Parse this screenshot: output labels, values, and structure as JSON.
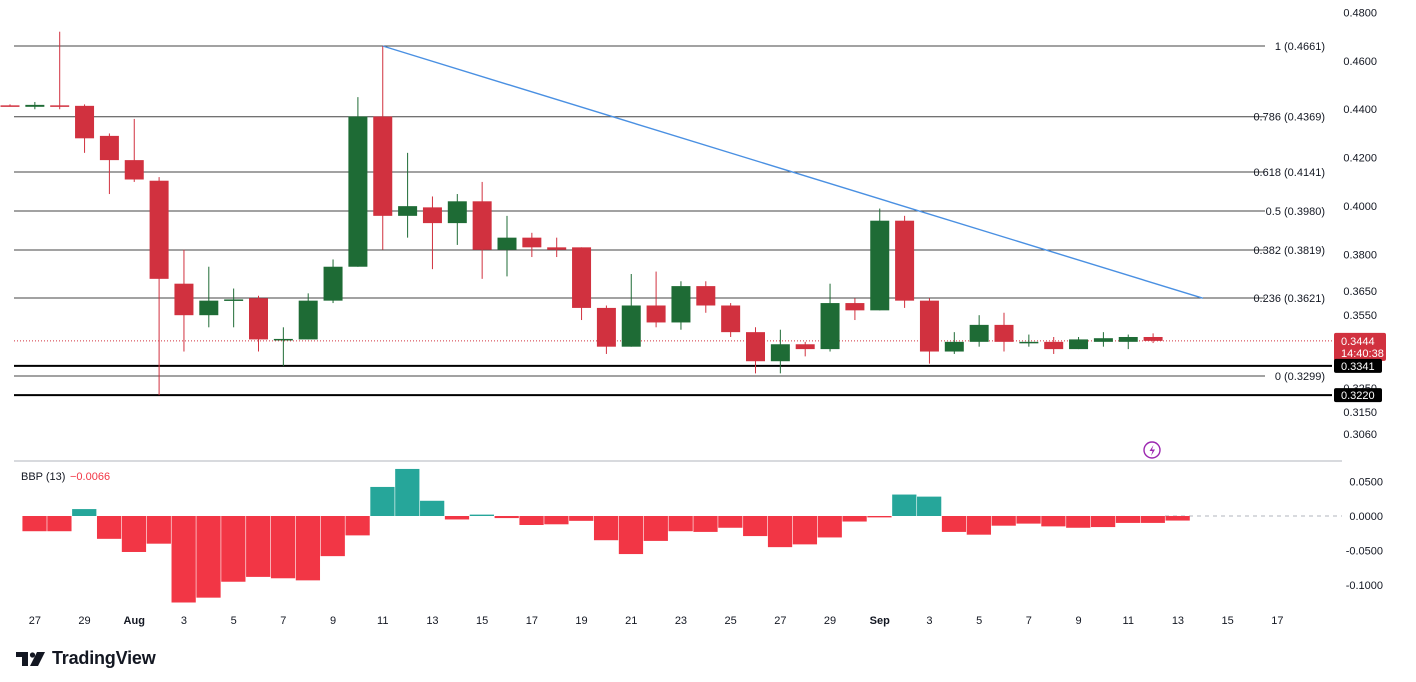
{
  "branding": {
    "logo_text": "TradingView"
  },
  "colors": {
    "up": "#1e6b35",
    "down": "#d1313f",
    "fib_line": "#444444",
    "trend_line": "#4a90e2",
    "bbp_up": "#26a69a",
    "bbp_down": "#f23645",
    "price_tag": "#d1313f",
    "support_tag": "#000000",
    "lightning": "#9c27b0"
  },
  "price_axis_labels": [
    "0.4800",
    "0.4600",
    "0.4400",
    "0.4200",
    "0.4000",
    "0.3800",
    "0.3650",
    "0.3550",
    "0.3250",
    "0.3150",
    "0.3060"
  ],
  "bbp_axis_labels": [
    "0.0500",
    "0.0000",
    "-0.0500",
    "-0.1000"
  ],
  "current_price": {
    "value": "0.3444",
    "countdown": "14:40:38"
  },
  "support_levels": [
    {
      "label": "0.3341",
      "value": 0.3341
    },
    {
      "label": "0.3220",
      "value": 0.322
    }
  ],
  "indicator": {
    "name": "BBP (13)",
    "value": "−0.0066"
  },
  "chart_data": {
    "type": "candlestick",
    "title": "",
    "x_tick_labels": [
      "27",
      "29",
      "Aug",
      "3",
      "5",
      "7",
      "9",
      "11",
      "13",
      "15",
      "17",
      "19",
      "21",
      "23",
      "25",
      "27",
      "29",
      "Sep",
      "3",
      "5",
      "7",
      "9",
      "11",
      "13",
      "15",
      "17"
    ],
    "candles": [
      {
        "o": 0.4416,
        "h": 0.442,
        "l": 0.4412,
        "c": 0.4414
      },
      {
        "o": 0.441,
        "h": 0.443,
        "l": 0.44,
        "c": 0.4418
      },
      {
        "o": 0.4416,
        "h": 0.472,
        "l": 0.44,
        "c": 0.4414
      },
      {
        "o": 0.4414,
        "h": 0.442,
        "l": 0.422,
        "c": 0.428
      },
      {
        "o": 0.429,
        "h": 0.43,
        "l": 0.405,
        "c": 0.419
      },
      {
        "o": 0.419,
        "h": 0.436,
        "l": 0.41,
        "c": 0.411
      },
      {
        "o": 0.4105,
        "h": 0.412,
        "l": 0.322,
        "c": 0.37
      },
      {
        "o": 0.368,
        "h": 0.382,
        "l": 0.34,
        "c": 0.355
      },
      {
        "o": 0.355,
        "h": 0.375,
        "l": 0.35,
        "c": 0.361
      },
      {
        "o": 0.361,
        "h": 0.366,
        "l": 0.35,
        "c": 0.3615
      },
      {
        "o": 0.362,
        "h": 0.363,
        "l": 0.34,
        "c": 0.345
      },
      {
        "o": 0.345,
        "h": 0.35,
        "l": 0.334,
        "c": 0.3452
      },
      {
        "o": 0.345,
        "h": 0.364,
        "l": 0.345,
        "c": 0.361
      },
      {
        "o": 0.361,
        "h": 0.378,
        "l": 0.36,
        "c": 0.375
      },
      {
        "o": 0.375,
        "h": 0.445,
        "l": 0.375,
        "c": 0.437
      },
      {
        "o": 0.437,
        "h": 0.466,
        "l": 0.382,
        "c": 0.396
      },
      {
        "o": 0.396,
        "h": 0.422,
        "l": 0.387,
        "c": 0.4
      },
      {
        "o": 0.3995,
        "h": 0.404,
        "l": 0.374,
        "c": 0.393
      },
      {
        "o": 0.393,
        "h": 0.405,
        "l": 0.384,
        "c": 0.402
      },
      {
        "o": 0.402,
        "h": 0.41,
        "l": 0.37,
        "c": 0.382
      },
      {
        "o": 0.382,
        "h": 0.396,
        "l": 0.371,
        "c": 0.387
      },
      {
        "o": 0.387,
        "h": 0.389,
        "l": 0.379,
        "c": 0.383
      },
      {
        "o": 0.383,
        "h": 0.387,
        "l": 0.379,
        "c": 0.382
      },
      {
        "o": 0.383,
        "h": 0.383,
        "l": 0.353,
        "c": 0.358
      },
      {
        "o": 0.358,
        "h": 0.359,
        "l": 0.339,
        "c": 0.342
      },
      {
        "o": 0.342,
        "h": 0.372,
        "l": 0.342,
        "c": 0.359
      },
      {
        "o": 0.359,
        "h": 0.373,
        "l": 0.35,
        "c": 0.352
      },
      {
        "o": 0.352,
        "h": 0.369,
        "l": 0.349,
        "c": 0.367
      },
      {
        "o": 0.367,
        "h": 0.369,
        "l": 0.356,
        "c": 0.359
      },
      {
        "o": 0.359,
        "h": 0.36,
        "l": 0.346,
        "c": 0.348
      },
      {
        "o": 0.348,
        "h": 0.35,
        "l": 0.331,
        "c": 0.336
      },
      {
        "o": 0.336,
        "h": 0.349,
        "l": 0.331,
        "c": 0.343
      },
      {
        "o": 0.343,
        "h": 0.344,
        "l": 0.338,
        "c": 0.341
      },
      {
        "o": 0.341,
        "h": 0.368,
        "l": 0.34,
        "c": 0.36
      },
      {
        "o": 0.36,
        "h": 0.362,
        "l": 0.353,
        "c": 0.357
      },
      {
        "o": 0.357,
        "h": 0.399,
        "l": 0.357,
        "c": 0.394
      },
      {
        "o": 0.394,
        "h": 0.396,
        "l": 0.358,
        "c": 0.361
      },
      {
        "o": 0.361,
        "h": 0.362,
        "l": 0.335,
        "c": 0.34
      },
      {
        "o": 0.34,
        "h": 0.348,
        "l": 0.339,
        "c": 0.344
      },
      {
        "o": 0.344,
        "h": 0.355,
        "l": 0.342,
        "c": 0.351
      },
      {
        "o": 0.351,
        "h": 0.356,
        "l": 0.34,
        "c": 0.344
      },
      {
        "o": 0.344,
        "h": 0.347,
        "l": 0.342,
        "c": 0.344
      },
      {
        "o": 0.344,
        "h": 0.346,
        "l": 0.339,
        "c": 0.341
      },
      {
        "o": 0.341,
        "h": 0.346,
        "l": 0.341,
        "c": 0.345
      },
      {
        "o": 0.344,
        "h": 0.348,
        "l": 0.342,
        "c": 0.3455
      },
      {
        "o": 0.344,
        "h": 0.347,
        "l": 0.341,
        "c": 0.346
      },
      {
        "o": 0.346,
        "h": 0.3475,
        "l": 0.3435,
        "c": 0.3444
      }
    ],
    "fib_levels": [
      {
        "ratio": "1",
        "value": 0.4661,
        "label": "1 (0.4661)"
      },
      {
        "ratio": "0.786",
        "value": 0.4369,
        "label": "0.786 (0.4369)"
      },
      {
        "ratio": "0.618",
        "value": 0.4141,
        "label": "0.618 (0.4141)"
      },
      {
        "ratio": "0.5",
        "value": 0.398,
        "label": "0.5 (0.3980)"
      },
      {
        "ratio": "0.382",
        "value": 0.3819,
        "label": "0.382 (0.3819)"
      },
      {
        "ratio": "0.236",
        "value": 0.3621,
        "label": "0.236 (0.3621)"
      },
      {
        "ratio": "0",
        "value": 0.3299,
        "label": "0 (0.3299)"
      }
    ],
    "trendline": {
      "start": {
        "candle": 15,
        "price": 0.4661
      },
      "end": {
        "candle": 48,
        "price": 0.362
      }
    },
    "bbp": [
      -0.022,
      -0.022,
      0.01,
      -0.033,
      -0.052,
      -0.04,
      -0.125,
      -0.118,
      -0.095,
      -0.088,
      -0.09,
      -0.093,
      -0.058,
      -0.028,
      0.042,
      0.068,
      0.022,
      -0.005,
      0.002,
      -0.003,
      -0.013,
      -0.012,
      -0.007,
      -0.035,
      -0.055,
      -0.036,
      -0.022,
      -0.023,
      -0.017,
      -0.029,
      -0.045,
      -0.041,
      -0.031,
      -0.008,
      -0.002,
      0.031,
      0.028,
      -0.023,
      -0.027,
      -0.014,
      -0.011,
      -0.015,
      -0.017,
      -0.016,
      -0.01,
      -0.01,
      -0.0066
    ]
  }
}
